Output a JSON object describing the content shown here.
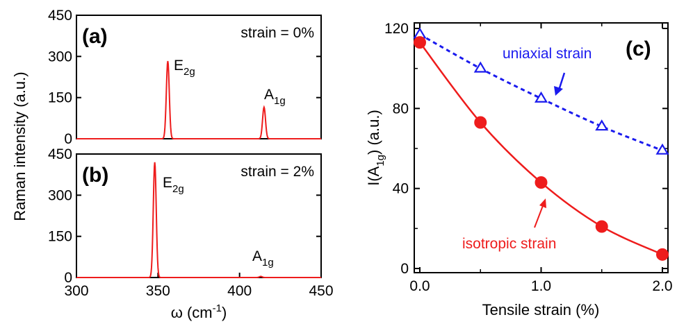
{
  "chart_data": [
    {
      "panel": "(a)",
      "type": "line",
      "annotation": "strain = 0%",
      "xlim": [
        300,
        450
      ],
      "ylim": [
        0,
        450
      ],
      "yticks": [
        "0",
        "150",
        "300",
        "450"
      ],
      "ylabel": "Raman intensity (a.u.)",
      "color": "#ee1c1c",
      "peaks": [
        {
          "label_main": "E",
          "label_sub": "2g",
          "x": 356,
          "height": 283
        },
        {
          "label_main": "A",
          "label_sub": "1g",
          "x": 415,
          "height": 115
        }
      ]
    },
    {
      "panel": "(b)",
      "type": "line",
      "annotation": "strain = 2%",
      "xlim": [
        300,
        450
      ],
      "ylim": [
        0,
        450
      ],
      "xticks": [
        "300",
        "350",
        "400",
        "450"
      ],
      "yticks": [
        "0",
        "150",
        "300",
        "450"
      ],
      "xlabel_main": "ω (cm",
      "xlabel_sup": "-1",
      "xlabel_end": ")",
      "color": "#ee1c1c",
      "peaks": [
        {
          "label_main": "E",
          "label_sub": "2g",
          "x": 348,
          "height": 420
        },
        {
          "label_main": "A",
          "label_sub": "1g",
          "x": 413,
          "height": 4
        }
      ]
    },
    {
      "panel": "(c)",
      "type": "line",
      "xlim": [
        0,
        2.0
      ],
      "ylim": [
        0,
        120
      ],
      "xticks": [
        "0.0",
        "1.0",
        "2.0"
      ],
      "yticks": [
        "0",
        "40",
        "80",
        "120"
      ],
      "xlabel": "Tensile strain (%)",
      "ylabel_main": "I(A",
      "ylabel_sub": "1g",
      "ylabel_end": ") (a.u.)",
      "series": [
        {
          "name": "uniaxial strain",
          "color": "#1a1aee",
          "marker": "triangle-open",
          "line": "dashed",
          "x": [
            0.0,
            0.5,
            1.0,
            1.5,
            2.0
          ],
          "y": [
            117,
            100,
            85,
            71,
            59
          ]
        },
        {
          "name": "isotropic strain",
          "color": "#ee1c1c",
          "marker": "circle-filled",
          "line": "solid",
          "x": [
            0.0,
            0.5,
            1.0,
            1.5,
            2.0
          ],
          "y": [
            113,
            73,
            43,
            21,
            7
          ]
        }
      ]
    }
  ]
}
